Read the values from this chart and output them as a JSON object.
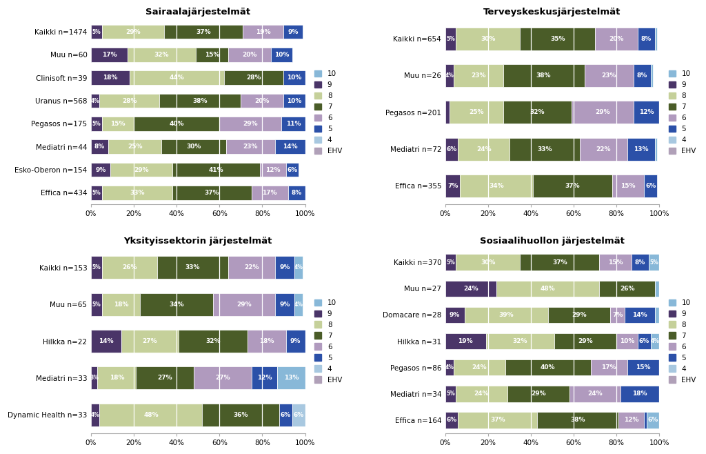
{
  "colors": {
    "9": "#4A3568",
    "8": "#C5D09A",
    "7": "#4A5C28",
    "6": "#B09ABE",
    "5": "#2B50A8",
    "10": "#88B8D8",
    "4": "#A8C8E0",
    "EHV": "#B0A0B8"
  },
  "panels": [
    {
      "title": "Sairaalajärjestelmät",
      "cats": [
        "Kaikki n=1474",
        "Muu n=60",
        "Clinisoft n=39",
        "Uranus n=568",
        "Pegasos n=175",
        "Mediatri n=44",
        "Esko-Oberon n=154",
        "Effica n=434"
      ],
      "segs": [
        {
          "9": 5,
          "8": 29,
          "7": 37,
          "6": 19,
          "5": 9,
          "10": 0,
          "4": 0,
          "EHV": 0
        },
        {
          "9": 17,
          "8": 32,
          "7": 15,
          "6": 20,
          "5": 10,
          "10": 0,
          "4": 0,
          "EHV": 0
        },
        {
          "9": 18,
          "8": 44,
          "7": 28,
          "6": 0,
          "5": 10,
          "10": 0,
          "4": 0,
          "EHV": 0
        },
        {
          "9": 4,
          "8": 28,
          "7": 38,
          "6": 20,
          "5": 10,
          "10": 0,
          "4": 0,
          "EHV": 0
        },
        {
          "9": 5,
          "8": 15,
          "7": 40,
          "6": 29,
          "5": 11,
          "10": 0,
          "4": 0,
          "EHV": 0
        },
        {
          "9": 8,
          "8": 25,
          "7": 30,
          "6": 23,
          "5": 14,
          "10": 0,
          "4": 0,
          "EHV": 0
        },
        {
          "9": 9,
          "8": 29,
          "7": 41,
          "6": 12,
          "5": 6,
          "10": 0,
          "4": 0,
          "EHV": 0
        },
        {
          "9": 5,
          "8": 33,
          "7": 37,
          "6": 17,
          "5": 8,
          "10": 0,
          "4": 0,
          "EHV": 0
        }
      ]
    },
    {
      "title": "Terveyskeskusjärjestelmät",
      "cats": [
        "Kaikki n=654",
        "Muu n=26",
        "Pegasos n=201",
        "Mediatri n=72",
        "Effica n=355"
      ],
      "segs": [
        {
          "9": 5,
          "8": 30,
          "7": 35,
          "6": 20,
          "5": 8,
          "10": 1,
          "4": 0,
          "EHV": 0
        },
        {
          "9": 4,
          "8": 23,
          "7": 38,
          "6": 23,
          "5": 8,
          "10": 1,
          "4": 0,
          "EHV": 0
        },
        {
          "9": 2,
          "8": 25,
          "7": 32,
          "6": 29,
          "5": 12,
          "10": 0,
          "4": 0,
          "EHV": 0
        },
        {
          "9": 6,
          "8": 24,
          "7": 33,
          "6": 22,
          "5": 13,
          "10": 1,
          "4": 0,
          "EHV": 0
        },
        {
          "9": 7,
          "8": 34,
          "7": 37,
          "6": 15,
          "5": 6,
          "10": 0,
          "4": 0,
          "EHV": 0
        }
      ]
    },
    {
      "title": "Yksityissektorin järjestelmät",
      "cats": [
        "Kaikki n=153",
        "Muu n=65",
        "Hilkka n=22",
        "Mediatri n=33",
        "Dynamic Health n=33"
      ],
      "segs": [
        {
          "9": 5,
          "8": 26,
          "7": 33,
          "6": 22,
          "5": 9,
          "10": 4,
          "4": 0,
          "EHV": 0
        },
        {
          "9": 5,
          "8": 18,
          "7": 34,
          "6": 29,
          "5": 9,
          "10": 4,
          "4": 0,
          "EHV": 0
        },
        {
          "9": 14,
          "8": 27,
          "7": 32,
          "6": 18,
          "5": 9,
          "10": 0,
          "4": 0,
          "EHV": 0
        },
        {
          "9": 3,
          "8": 18,
          "7": 27,
          "6": 27,
          "5": 12,
          "10": 13,
          "4": 0,
          "EHV": 0
        },
        {
          "9": 4,
          "8": 48,
          "7": 36,
          "6": 0,
          "5": 6,
          "10": 0,
          "4": 6,
          "EHV": 0
        }
      ]
    },
    {
      "title": "Sosiaalihuollon järjestelmät",
      "cats": [
        "Kaikki n=370",
        "Muu n=27",
        "Domacare n=28",
        "Hilkka n=31",
        "Pegasos n=86",
        "Mediatri n=34",
        "Effica n=164"
      ],
      "segs": [
        {
          "9": 5,
          "8": 30,
          "7": 37,
          "6": 15,
          "5": 8,
          "10": 5,
          "4": 0,
          "EHV": 0
        },
        {
          "9": 24,
          "8": 48,
          "7": 26,
          "6": 0,
          "5": 0,
          "10": 2,
          "4": 0,
          "EHV": 0
        },
        {
          "9": 9,
          "8": 39,
          "7": 29,
          "6": 7,
          "5": 14,
          "10": 2,
          "4": 0,
          "EHV": 0
        },
        {
          "9": 19,
          "8": 32,
          "7": 29,
          "6": 10,
          "5": 6,
          "10": 4,
          "4": 0,
          "EHV": 0
        },
        {
          "9": 4,
          "8": 24,
          "7": 40,
          "6": 17,
          "5": 15,
          "10": 0,
          "4": 0,
          "EHV": 0
        },
        {
          "9": 5,
          "8": 24,
          "7": 29,
          "6": 24,
          "5": 18,
          "10": 0,
          "4": 0,
          "EHV": 0
        },
        {
          "9": 6,
          "8": 37,
          "7": 38,
          "6": 12,
          "5": 1,
          "10": 6,
          "4": 0,
          "EHV": 0
        }
      ]
    }
  ],
  "seg_order": [
    "9",
    "8",
    "7",
    "6",
    "5",
    "10",
    "4",
    "EHV"
  ],
  "legend_order": [
    "10",
    "9",
    "8",
    "7",
    "6",
    "5",
    "4",
    "EHV"
  ]
}
